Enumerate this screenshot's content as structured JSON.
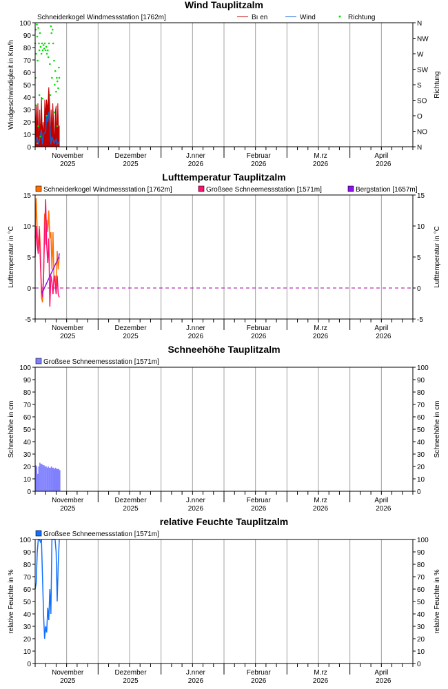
{
  "x_axis": {
    "range_days": [
      0,
      180
    ],
    "months": [
      {
        "name": "November",
        "year": "2025",
        "day": 30.5
      },
      {
        "name": "Dezember",
        "year": "2025",
        "day": 60.5
      },
      {
        "name": "J.nner",
        "year": "2026",
        "day": 91.5
      },
      {
        "name": "Februar",
        "year": "2026",
        "day": 121.5
      },
      {
        "name": "M.rz",
        "year": "2026",
        "day": 151
      },
      {
        "name": "April",
        "year": "2026",
        "day": 181
      }
    ],
    "gridlines_days": [
      15,
      30,
      45,
      60,
      75,
      90,
      105,
      120,
      135,
      150,
      165
    ],
    "month_separators_days": [
      30,
      60,
      90,
      120,
      150
    ]
  },
  "chart_data": [
    {
      "type": "area",
      "title": "Wind  Tauplitzalm",
      "station": "Schneiderkogel Windmessstation [1762m]",
      "ylabel": "Windgeschwindigkeit in Km/h",
      "ylabel_right": "Richtung",
      "ylim": [
        0,
        100
      ],
      "yticks": [
        0,
        10,
        20,
        30,
        40,
        50,
        60,
        70,
        80,
        90,
        100
      ],
      "right_ticks": [
        "N",
        "NO",
        "O",
        "SO",
        "S",
        "SW",
        "W",
        "NW",
        "N"
      ],
      "series": [
        {
          "name": "Bı en",
          "color": "#c00000",
          "kind": "area",
          "points": [
            [
              0,
              35
            ],
            [
              0.3,
              10
            ],
            [
              0.6,
              34
            ],
            [
              1,
              5
            ],
            [
              1.3,
              35
            ],
            [
              1.8,
              0
            ],
            [
              2.2,
              30
            ],
            [
              2.6,
              5
            ],
            [
              3,
              40
            ],
            [
              3.4,
              10
            ],
            [
              3.8,
              20
            ],
            [
              4.2,
              5
            ],
            [
              4.6,
              38
            ],
            [
              5,
              25
            ],
            [
              5.4,
              38
            ],
            [
              6,
              30
            ],
            [
              6.5,
              48
            ],
            [
              6.9,
              35
            ],
            [
              7.2,
              0
            ],
            [
              7.6,
              30
            ],
            [
              8,
              10
            ],
            [
              8.4,
              35
            ],
            [
              8.8,
              20
            ],
            [
              9.2,
              0
            ],
            [
              9.6,
              28
            ],
            [
              10,
              33
            ],
            [
              10.4,
              5
            ],
            [
              10.8,
              35
            ],
            [
              11.2,
              10
            ],
            [
              11.5,
              17
            ]
          ]
        },
        {
          "name": "Wind",
          "color": "#1060d0",
          "kind": "line",
          "points": [
            [
              0,
              3
            ],
            [
              1,
              8
            ],
            [
              1.5,
              2
            ],
            [
              2,
              5
            ],
            [
              3,
              14
            ],
            [
              3.5,
              2
            ],
            [
              4,
              10
            ],
            [
              5,
              12
            ],
            [
              5.5,
              25
            ],
            [
              6,
              20
            ],
            [
              6.5,
              28
            ],
            [
              7,
              18
            ],
            [
              7.5,
              2
            ],
            [
              8,
              8
            ],
            [
              9,
              3
            ],
            [
              10,
              6
            ],
            [
              10.5,
              2
            ],
            [
              11.5,
              4
            ]
          ]
        },
        {
          "name": "Richtung",
          "color": "#00e000",
          "kind": "dots",
          "points": [
            [
              0,
              300
            ],
            [
              0.3,
              340
            ],
            [
              0.5,
              270
            ],
            [
              0.8,
              355
            ],
            [
              1,
              320
            ],
            [
              1.2,
              250
            ],
            [
              1.5,
              345
            ],
            [
              1.8,
              300
            ],
            [
              2,
              280
            ],
            [
              2.3,
              330
            ],
            [
              2.6,
              290
            ],
            [
              3,
              270
            ],
            [
              3.3,
              300
            ],
            [
              3.6,
              280
            ],
            [
              4,
              295
            ],
            [
              4.3,
              285
            ],
            [
              4.6,
              300
            ],
            [
              5,
              280
            ],
            [
              5.3,
              290
            ],
            [
              5.6,
              270
            ],
            [
              6,
              280
            ],
            [
              6.3,
              260
            ],
            [
              6.6,
              300
            ],
            [
              7,
              240
            ],
            [
              7.2,
              150
            ],
            [
              7.5,
              350
            ],
            [
              7.8,
              330
            ],
            [
              8,
              200
            ],
            [
              8.3,
              340
            ],
            [
              8.6,
              300
            ],
            [
              9,
              250
            ],
            [
              9.3,
              180
            ],
            [
              9.6,
              220
            ],
            [
              10,
              160
            ],
            [
              10.3,
              200
            ],
            [
              10.6,
              190
            ],
            [
              11,
              170
            ],
            [
              11.3,
              230
            ],
            [
              11.5,
              200
            ],
            [
              0.5,
              120
            ],
            [
              1.5,
              60
            ],
            [
              2.5,
              30
            ],
            [
              3.5,
              140
            ],
            [
              5.5,
              90
            ],
            [
              9,
              100
            ],
            [
              10.5,
              60
            ],
            [
              1,
              10
            ],
            [
              0.2,
              200
            ],
            [
              2,
              150
            ]
          ]
        }
      ]
    },
    {
      "type": "line",
      "title": "Lufttemperatur  Tauplitzalm",
      "ylabel": "Lufttemperatur in °C",
      "ylabel_right": "Lufttemperatur in °C",
      "ylim": [
        -5,
        15
      ],
      "yticks": [
        -5,
        0,
        5,
        10,
        15
      ],
      "zero_line": true,
      "series": [
        {
          "name": "Schneiderkogel Windmessstation [1762m]",
          "color": "#ff7000",
          "points": [
            [
              0,
              8
            ],
            [
              0.5,
              14.5
            ],
            [
              1,
              9
            ],
            [
              1.5,
              6
            ],
            [
              2,
              10
            ],
            [
              2.5,
              6
            ],
            [
              3,
              -1.5
            ],
            [
              3.5,
              -2.3
            ],
            [
              4,
              1
            ],
            [
              4.5,
              12
            ],
            [
              5,
              7
            ],
            [
              5.5,
              11
            ],
            [
              6,
              9
            ],
            [
              6.5,
              12.5
            ],
            [
              7,
              8
            ],
            [
              7.5,
              9
            ],
            [
              8,
              3
            ],
            [
              8.5,
              9
            ],
            [
              9,
              1
            ],
            [
              9.5,
              2
            ],
            [
              10,
              0
            ],
            [
              10.5,
              6
            ],
            [
              11,
              3
            ],
            [
              11.5,
              5
            ]
          ]
        },
        {
          "name": "Großsee Schneemessstation [1571m]",
          "color": "#ff1070",
          "points": [
            [
              0,
              5
            ],
            [
              0.5,
              10
            ],
            [
              1,
              7
            ],
            [
              1.5,
              5.5
            ],
            [
              2,
              9.5
            ],
            [
              2.5,
              4
            ],
            [
              3,
              0
            ],
            [
              3.5,
              -1.5
            ],
            [
              4,
              2
            ],
            [
              4.5,
              9
            ],
            [
              5,
              14.3
            ],
            [
              5.5,
              7
            ],
            [
              6,
              4
            ],
            [
              6.5,
              8
            ],
            [
              7,
              -3
            ],
            [
              7.5,
              2
            ],
            [
              8,
              1
            ],
            [
              8.5,
              -1
            ],
            [
              9,
              2
            ],
            [
              9.5,
              1
            ],
            [
              10,
              -1
            ],
            [
              10.5,
              2
            ],
            [
              11,
              -1
            ],
            [
              11.5,
              -1.5
            ]
          ]
        },
        {
          "name": "Bergstation [1657m]",
          "color": "#9010f0",
          "points": [
            [
              3,
              -0.5
            ],
            [
              3.3,
              -0.8
            ],
            [
              11.3,
              5
            ],
            [
              11.5,
              5.6
            ]
          ]
        }
      ]
    },
    {
      "type": "bar",
      "title": "Schneehöhe  Tauplitzalm",
      "ylabel": "Schneehöhe in cm",
      "ylabel_right": "Schneehöhe in cm",
      "ylim": [
        0,
        100
      ],
      "yticks": [
        0,
        10,
        20,
        30,
        40,
        50,
        60,
        70,
        80,
        90,
        100
      ],
      "series": [
        {
          "name": "Großsee Schneemessstation [1571m]",
          "color": "#8080ff",
          "points": [
            [
              0,
              21
            ],
            [
              0.5,
              20
            ],
            [
              1,
              14
            ],
            [
              1.5,
              20
            ],
            [
              2,
              23
            ],
            [
              2.5,
              22
            ],
            [
              3,
              22
            ],
            [
              3.5,
              21
            ],
            [
              4,
              21
            ],
            [
              4.5,
              20
            ],
            [
              5,
              20
            ],
            [
              5.5,
              19
            ],
            [
              6,
              20
            ],
            [
              6.5,
              19
            ],
            [
              7,
              19
            ],
            [
              7.5,
              20
            ],
            [
              8,
              19
            ],
            [
              8.5,
              19
            ],
            [
              9,
              18
            ],
            [
              9.5,
              19
            ],
            [
              10,
              18
            ],
            [
              10.5,
              18
            ],
            [
              11,
              18
            ],
            [
              11.5,
              17
            ]
          ]
        }
      ]
    },
    {
      "type": "line",
      "title": "relative Feuchte  Tauplitzalm",
      "ylabel": "relative Feuchte in %",
      "ylabel_right": "relative Feuchte in %",
      "ylim": [
        0,
        100
      ],
      "yticks": [
        0,
        10,
        20,
        30,
        40,
        50,
        60,
        70,
        80,
        90,
        100
      ],
      "series": [
        {
          "name": "Großsee Schneemessstation [1571m]",
          "color": "#1070ff",
          "points": [
            [
              0,
              60
            ],
            [
              0.5,
              65
            ],
            [
              1,
              90
            ],
            [
              1.5,
              100
            ],
            [
              2,
              100
            ],
            [
              2.5,
              98
            ],
            [
              3,
              100
            ],
            [
              3.5,
              70
            ],
            [
              4,
              40
            ],
            [
              4.5,
              20
            ],
            [
              5,
              30
            ],
            [
              5.5,
              25
            ],
            [
              6,
              45
            ],
            [
              6.5,
              35
            ],
            [
              7,
              60
            ],
            [
              7.5,
              40
            ],
            [
              8,
              100
            ],
            [
              8.5,
              100
            ],
            [
              9,
              100
            ],
            [
              9.5,
              100
            ],
            [
              10,
              90
            ],
            [
              10.5,
              50
            ],
            [
              11,
              80
            ],
            [
              11.5,
              100
            ]
          ]
        }
      ]
    }
  ]
}
